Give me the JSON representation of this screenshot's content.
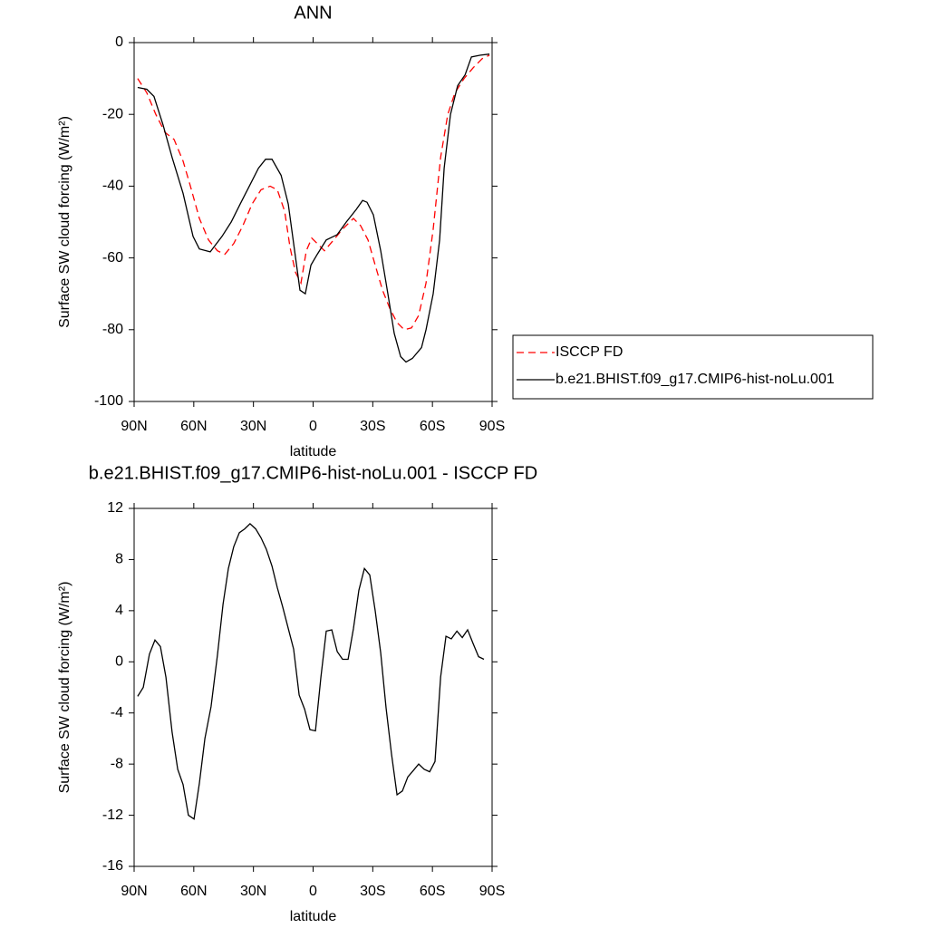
{
  "chart_data": [
    {
      "type": "line",
      "title": "ANN",
      "xlabel": "latitude",
      "ylabel": "Surface SW cloud forcing (W/m²)",
      "xlim": [
        90,
        -90
      ],
      "xticks": [
        {
          "value": 90,
          "label": "90N"
        },
        {
          "value": 60,
          "label": "60N"
        },
        {
          "value": 30,
          "label": "30N"
        },
        0,
        {
          "value": -30,
          "label": "30S"
        },
        {
          "value": -60,
          "label": "60S"
        },
        {
          "value": -90,
          "label": "90S"
        }
      ],
      "ylim": [
        -100,
        0
      ],
      "yticks": [
        0,
        -20,
        -40,
        -60,
        -80,
        -100
      ],
      "legend": "right",
      "series": [
        {
          "name": "ISCCP FD",
          "color": "#ff0000",
          "dashed": true,
          "x": [
            88.2,
            83.6,
            79.1,
            74.5,
            69.9,
            65.4,
            61.7,
            57.2,
            52.6,
            48.1,
            44.4,
            39.9,
            35.3,
            30.7,
            26.2,
            21.6,
            18.0,
            14.3,
            11.6,
            8.9,
            6.1,
            3.4,
            0.7,
            -2.1,
            -5.7,
            -10.3,
            -14.8,
            -20.3,
            -23.9,
            -27.6,
            -31.2,
            -34.9,
            -38.5,
            -42.2,
            -45.8,
            -49.5,
            -53.1,
            -56.8,
            -60.4,
            -64.1,
            -67.7,
            -71.3,
            -75.9,
            -80.5,
            -85.0,
            -88.7
          ],
          "values": [
            -10,
            -14,
            -20,
            -25,
            -27,
            -33,
            -40,
            -49,
            -55,
            -58,
            -59,
            -56,
            -51,
            -45,
            -41,
            -40,
            -41,
            -47,
            -57,
            -64,
            -67,
            -58,
            -54.5,
            -56,
            -58,
            -55,
            -52,
            -49,
            -51,
            -55,
            -62,
            -69,
            -74,
            -78,
            -80,
            -79.5,
            -76,
            -67,
            -52,
            -32,
            -20,
            -14,
            -10,
            -7,
            -4.5,
            -3.5
          ]
        },
        {
          "name": "b.e21.BHIST.f09_g17.CMIP6-hist-noLu.001",
          "color": "#000000",
          "dashed": false,
          "x": [
            88.2,
            83.6,
            80.0,
            75.4,
            70.9,
            65.4,
            60.4,
            57.2,
            51.7,
            45.8,
            41.2,
            36.7,
            32.1,
            27.5,
            23.9,
            20.7,
            16.1,
            12.5,
            9.3,
            6.6,
            3.9,
            1.1,
            -2.1,
            -6.6,
            -12.1,
            -16.7,
            -21.7,
            -24.9,
            -27.1,
            -30.3,
            -34.0,
            -37.6,
            -40.8,
            -44.0,
            -46.7,
            -49.9,
            -54.5,
            -56.8,
            -60.4,
            -63.6,
            -65.9,
            -69.1,
            -72.7,
            -76.4,
            -79.6,
            -84.1,
            -88.7
          ],
          "values": [
            -12.5,
            -13,
            -15,
            -23,
            -32,
            -42,
            -54,
            -57.5,
            -58.3,
            -54,
            -50,
            -45,
            -40,
            -35,
            -32.5,
            -32.5,
            -37,
            -45,
            -58,
            -69,
            -70,
            -62,
            -59,
            -55,
            -53.5,
            -50,
            -46.5,
            -44,
            -44.5,
            -48,
            -58,
            -70,
            -81,
            -87.5,
            -89,
            -88,
            -85,
            -80,
            -70,
            -55,
            -35,
            -20,
            -12,
            -9,
            -4,
            -3.5,
            -3.2
          ]
        }
      ]
    },
    {
      "type": "line",
      "title": "b.e21.BHIST.f09_g17.CMIP6-hist-noLu.001 - ISCCP FD",
      "xlabel": "latitude",
      "ylabel": "Surface SW cloud forcing (W/m²)",
      "xlim": [
        90,
        -90
      ],
      "xticks": [
        {
          "value": 90,
          "label": "90N"
        },
        {
          "value": 60,
          "label": "60N"
        },
        {
          "value": 30,
          "label": "30N"
        },
        0,
        {
          "value": -30,
          "label": "30S"
        },
        {
          "value": -60,
          "label": "60S"
        },
        {
          "value": -90,
          "label": "90S"
        }
      ],
      "ylim": [
        -16,
        12
      ],
      "yticks": [
        12,
        8,
        4,
        0,
        -4,
        -8,
        -12,
        -16
      ],
      "series": [
        {
          "color": "#000000",
          "dashed": false,
          "x": [
            88.2,
            85.4,
            82.3,
            79.5,
            76.8,
            74.0,
            70.9,
            68.1,
            65.4,
            62.7,
            59.9,
            57.2,
            54.4,
            51.3,
            48.1,
            45.3,
            42.6,
            39.9,
            37.1,
            34.4,
            31.7,
            28.9,
            26.2,
            23.5,
            20.7,
            18.0,
            15.3,
            12.5,
            9.8,
            7.0,
            4.3,
            1.6,
            -1.2,
            -3.9,
            -6.6,
            -9.4,
            -12.1,
            -14.8,
            -17.6,
            -20.3,
            -23.0,
            -25.8,
            -28.5,
            -31.2,
            -34.0,
            -36.7,
            -39.4,
            -42.2,
            -44.9,
            -47.6,
            -50.4,
            -53.1,
            -55.8,
            -58.6,
            -61.3,
            -64.1,
            -66.8,
            -69.5,
            -72.3,
            -75.0,
            -77.7,
            -80.5,
            -83.2,
            -85.9
          ],
          "values": [
            -2.7,
            -2,
            0.6,
            1.7,
            1.2,
            -1.2,
            -5.5,
            -8.4,
            -9.6,
            -12,
            -12.3,
            -9.5,
            -6,
            -3.5,
            0.5,
            4.5,
            7.3,
            9,
            10.1,
            10.4,
            10.8,
            10.4,
            9.7,
            8.8,
            7.5,
            5.8,
            4.3,
            2.6,
            1,
            -2.6,
            -3.7,
            -5.3,
            -5.4,
            -1.2,
            2.4,
            2.5,
            0.8,
            0.2,
            0.2,
            2.6,
            5.6,
            7.3,
            6.8,
            4,
            0.7,
            -3.6,
            -7.2,
            -10.4,
            -10.1,
            -9,
            -8.5,
            -8,
            -8.4,
            -8.6,
            -7.8,
            -1.2,
            2,
            1.8,
            2.4,
            1.9,
            2.5,
            1.4,
            0.4,
            0.2
          ]
        }
      ]
    }
  ]
}
